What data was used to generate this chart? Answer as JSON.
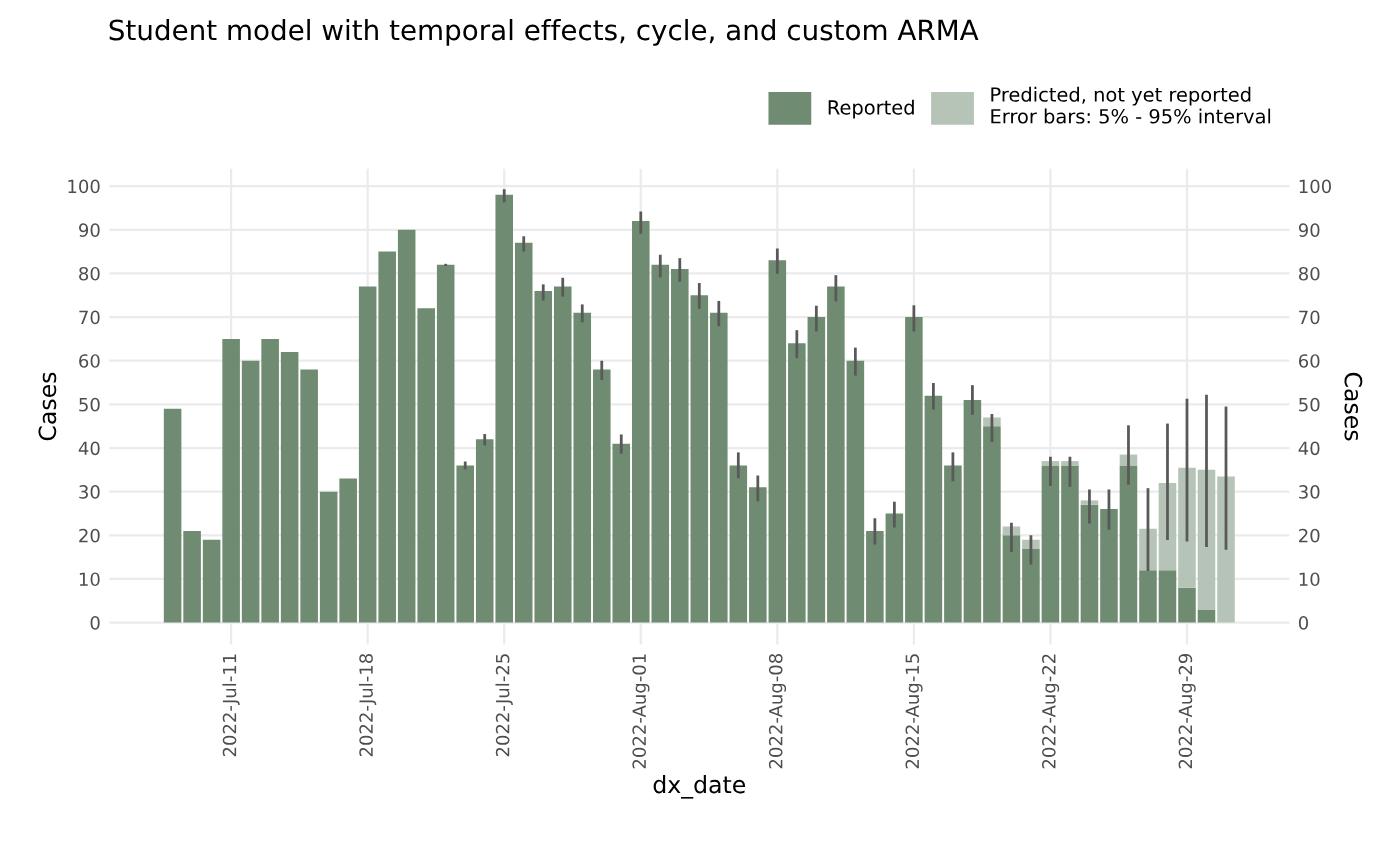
{
  "chart_data": {
    "type": "bar",
    "title": "Student model with temporal effects, cycle, and custom ARMA",
    "xlabel": "dx_date",
    "ylabel": "Cases",
    "y2label": "Cases",
    "x": [
      "2022-07-08",
      "2022-07-09",
      "2022-07-10",
      "2022-07-11",
      "2022-07-12",
      "2022-07-13",
      "2022-07-14",
      "2022-07-15",
      "2022-07-16",
      "2022-07-17",
      "2022-07-18",
      "2022-07-19",
      "2022-07-20",
      "2022-07-21",
      "2022-07-22",
      "2022-07-23",
      "2022-07-24",
      "2022-07-25",
      "2022-07-26",
      "2022-07-27",
      "2022-07-28",
      "2022-07-29",
      "2022-07-30",
      "2022-07-31",
      "2022-08-01",
      "2022-08-02",
      "2022-08-03",
      "2022-08-04",
      "2022-08-05",
      "2022-08-06",
      "2022-08-07",
      "2022-08-08",
      "2022-08-09",
      "2022-08-10",
      "2022-08-11",
      "2022-08-12",
      "2022-08-13",
      "2022-08-14",
      "2022-08-15",
      "2022-08-16",
      "2022-08-17",
      "2022-08-18",
      "2022-08-19",
      "2022-08-20",
      "2022-08-21",
      "2022-08-22",
      "2022-08-23",
      "2022-08-24",
      "2022-08-25",
      "2022-08-26",
      "2022-08-27",
      "2022-08-28",
      "2022-08-29",
      "2022-08-30",
      "2022-08-31"
    ],
    "stacked": true,
    "series": [
      {
        "name": "Reported",
        "color": "#6f8b71",
        "values": [
          49,
          21,
          19,
          65,
          60,
          65,
          62,
          58,
          30,
          33,
          77,
          85,
          90,
          72,
          82,
          36,
          42,
          98,
          87,
          76,
          77,
          71,
          58,
          41,
          92,
          82,
          81,
          75,
          71,
          36,
          31,
          83,
          64,
          70,
          77,
          60,
          21,
          25,
          70,
          52,
          36,
          51,
          45,
          20,
          17,
          36,
          36,
          27,
          26,
          36,
          12,
          12,
          8,
          3,
          0
        ],
        "errors": [
          null,
          null,
          null,
          null,
          null,
          null,
          null,
          null,
          null,
          null,
          null,
          null,
          null,
          null,
          [
            81.7,
            82.2
          ],
          [
            35.1,
            36.9
          ],
          [
            40.6,
            43.2
          ],
          [
            96.3,
            99.3
          ],
          [
            85,
            88.5
          ],
          [
            73.8,
            77.5
          ],
          [
            74.7,
            79
          ],
          [
            68.8,
            72.9
          ],
          [
            55.6,
            60
          ],
          [
            38.7,
            43.1
          ],
          [
            89.1,
            94.2
          ],
          [
            79.1,
            84.3
          ],
          [
            78.1,
            83.5
          ],
          [
            71.9,
            77.8
          ],
          [
            67.9,
            73.7
          ],
          [
            33.1,
            39
          ],
          [
            27.8,
            33.7
          ],
          [
            79.9,
            85.7
          ],
          [
            60.6,
            67
          ],
          [
            66.7,
            72.6
          ],
          [
            73.6,
            79.6
          ],
          [
            56.6,
            63
          ],
          [
            17.9,
            23.9
          ],
          [
            21.8,
            27.7
          ],
          [
            66.7,
            72.7
          ],
          [
            48.8,
            54.9
          ],
          [
            32.4,
            39
          ],
          [
            47.6,
            54.4
          ],
          null,
          null,
          null,
          null,
          null,
          null,
          [
            21.3,
            30.5
          ],
          null,
          null,
          null,
          null,
          null,
          null
        ]
      },
      {
        "name": "Predicted, not yet reported\nError bars: 5% - 95% interval",
        "color": "#b5c4b6",
        "values": [
          null,
          null,
          null,
          null,
          null,
          null,
          null,
          null,
          null,
          null,
          null,
          null,
          null,
          null,
          null,
          null,
          null,
          null,
          null,
          null,
          null,
          null,
          null,
          null,
          null,
          null,
          null,
          null,
          null,
          null,
          null,
          null,
          null,
          null,
          null,
          null,
          null,
          null,
          null,
          null,
          null,
          null,
          2,
          2,
          2,
          1,
          1,
          1,
          null,
          2.5,
          9.5,
          20,
          27.5,
          32,
          33.5
        ],
        "errors": [
          null,
          null,
          null,
          null,
          null,
          null,
          null,
          null,
          null,
          null,
          null,
          null,
          null,
          null,
          null,
          null,
          null,
          null,
          null,
          null,
          null,
          null,
          null,
          null,
          null,
          null,
          null,
          null,
          null,
          null,
          null,
          null,
          null,
          null,
          null,
          null,
          null,
          null,
          null,
          null,
          null,
          null,
          [
            41.4,
            47.8
          ],
          [
            16.2,
            22.9
          ],
          [
            13.3,
            20
          ],
          [
            31.3,
            38
          ],
          [
            31.1,
            38
          ],
          [
            22.7,
            30.5
          ],
          null,
          [
            31.6,
            45.2
          ],
          [
            11.8,
            30.8
          ],
          [
            18.9,
            45.6
          ],
          [
            18.6,
            51.3
          ],
          [
            17.3,
            52.2
          ],
          [
            16.7,
            49.5
          ]
        ]
      }
    ],
    "xlim": [
      "2022-07-04T18:00",
      "2022-09-03T06:00"
    ],
    "xticks": [
      {
        "value": "2022-07-11",
        "label": "2022-Jul-11"
      },
      {
        "value": "2022-07-18",
        "label": "2022-Jul-18"
      },
      {
        "value": "2022-07-25",
        "label": "2022-Jul-25"
      },
      {
        "value": "2022-08-01",
        "label": "2022-Aug-01"
      },
      {
        "value": "2022-08-08",
        "label": "2022-Aug-08"
      },
      {
        "value": "2022-08-15",
        "label": "2022-Aug-15"
      },
      {
        "value": "2022-08-22",
        "label": "2022-Aug-22"
      },
      {
        "value": "2022-08-29",
        "label": "2022-Aug-29"
      }
    ],
    "ylim": [
      -5,
      104
    ],
    "yticks": [
      0,
      10,
      20,
      30,
      40,
      50,
      60,
      70,
      80,
      90,
      100
    ],
    "y2lim": [
      -5,
      104
    ],
    "y2ticks": [
      0,
      10,
      20,
      30,
      40,
      50,
      60,
      70,
      80,
      90,
      100
    ],
    "grid": true,
    "legend": "top right"
  }
}
